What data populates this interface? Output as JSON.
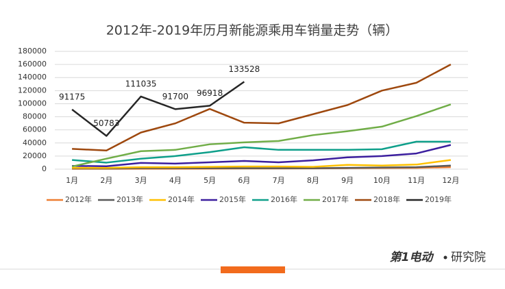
{
  "chart_data": {
    "type": "line",
    "title": "2012年-2019年历月新能源乘用车销量走势（辆）",
    "categories": [
      "1月",
      "2月",
      "3月",
      "4月",
      "5月",
      "6月",
      "7月",
      "8月",
      "9月",
      "10月",
      "11月",
      "12月"
    ],
    "ylim": [
      0,
      180000
    ],
    "yticks": [
      0,
      20000,
      40000,
      60000,
      80000,
      100000,
      120000,
      140000,
      160000,
      180000
    ],
    "grid": true,
    "legend": "bottom",
    "series": [
      {
        "name": "2012年",
        "color": "#ED7D31",
        "values": [
          500,
          500,
          600,
          700,
          800,
          1000,
          1000,
          1200,
          1500,
          1800,
          2000,
          3000
        ]
      },
      {
        "name": "2013年",
        "color": "#595959",
        "values": [
          1000,
          1000,
          1500,
          1500,
          1500,
          1500,
          1500,
          1500,
          2000,
          2500,
          3000,
          5500
        ]
      },
      {
        "name": "2014年",
        "color": "#FFC000",
        "values": [
          2000,
          2000,
          3000,
          3000,
          3500,
          4000,
          4000,
          3500,
          6500,
          5500,
          7000,
          14000
        ]
      },
      {
        "name": "2015年",
        "color": "#3B1E9E",
        "values": [
          5000,
          4500,
          9500,
          8500,
          10500,
          12500,
          10500,
          13500,
          18000,
          20000,
          24000,
          37000
        ]
      },
      {
        "name": "2016年",
        "color": "#0E9F8A",
        "values": [
          14000,
          10000,
          16000,
          20000,
          26000,
          33500,
          29500,
          29500,
          29500,
          30500,
          42000,
          42000
        ]
      },
      {
        "name": "2017年",
        "color": "#70AD47",
        "values": [
          4000,
          16000,
          27500,
          29500,
          38000,
          41000,
          43000,
          52000,
          58000,
          65000,
          81000,
          99000
        ]
      },
      {
        "name": "2018年",
        "color": "#9E480E",
        "values": [
          31000,
          28500,
          56000,
          70000,
          92000,
          71000,
          70000,
          84000,
          98000,
          120000,
          132000,
          160000
        ]
      },
      {
        "name": "2019年",
        "color": "#262626",
        "data_labels": true,
        "values": [
          91175,
          50783,
          111035,
          91700,
          96918,
          133528,
          null,
          null,
          null,
          null,
          null,
          null
        ]
      }
    ]
  },
  "branding": {
    "logo": "第1电动",
    "suffix": "研究院"
  }
}
